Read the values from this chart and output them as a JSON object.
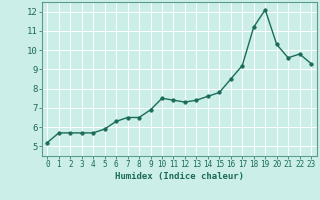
{
  "x": [
    0,
    1,
    2,
    3,
    4,
    5,
    6,
    7,
    8,
    9,
    10,
    11,
    12,
    13,
    14,
    15,
    16,
    17,
    18,
    19,
    20,
    21,
    22,
    23
  ],
  "y": [
    5.2,
    5.7,
    5.7,
    5.7,
    5.7,
    5.9,
    6.3,
    6.5,
    6.5,
    6.9,
    7.5,
    7.4,
    7.3,
    7.4,
    7.6,
    7.8,
    8.5,
    9.2,
    11.2,
    12.1,
    10.3,
    9.6,
    9.8,
    9.3
  ],
  "xlabel": "Humidex (Indice chaleur)",
  "ylim": [
    4.5,
    12.5
  ],
  "xlim": [
    -0.5,
    23.5
  ],
  "yticks": [
    5,
    6,
    7,
    8,
    9,
    10,
    11,
    12
  ],
  "xticks": [
    0,
    1,
    2,
    3,
    4,
    5,
    6,
    7,
    8,
    9,
    10,
    11,
    12,
    13,
    14,
    15,
    16,
    17,
    18,
    19,
    20,
    21,
    22,
    23
  ],
  "line_color": "#1a6b5a",
  "marker_size": 2.5,
  "bg_color": "#cceee8",
  "grid_color": "#ffffff",
  "spine_color": "#5a9a90",
  "tick_label_color": "#1a6b5a",
  "xlabel_color": "#1a6b5a",
  "xlabel_fontsize": 6.5,
  "tick_fontsize": 5.5,
  "ytick_fontsize": 6.5
}
